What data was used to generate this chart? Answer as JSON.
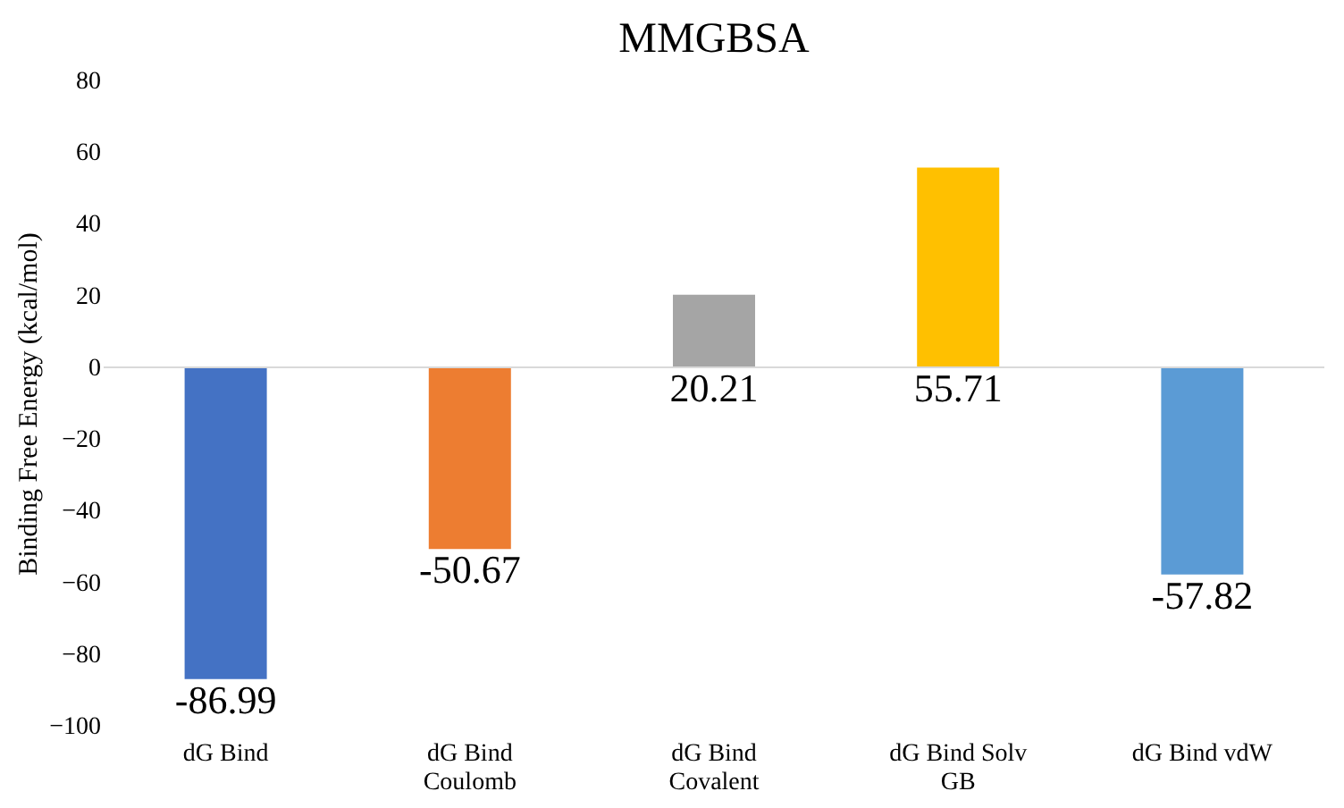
{
  "chart_data": {
    "type": "bar",
    "title": "MMGBSA",
    "ylabel": "Binding Free Energy (kcal/mol)",
    "categories": [
      "dG Bind",
      "dG Bind Coulomb",
      "dG Bind Covalent",
      "dG Bind Solv GB",
      "dG Bind vdW"
    ],
    "values": [
      -86.99,
      -50.67,
      20.21,
      55.71,
      -57.82
    ],
    "colors": [
      "#4472c4",
      "#ed7d31",
      "#a5a5a5",
      "#ffc000",
      "#5b9bd5"
    ],
    "ylim": [
      -100,
      80
    ],
    "yticks": [
      -100,
      -80,
      -60,
      -40,
      -20,
      0,
      20,
      40,
      60,
      80
    ],
    "ref_lines": [
      {
        "axis": "y",
        "value": 0,
        "color": "#d9d9d9"
      }
    ],
    "grid": false,
    "legend": false,
    "data_labels": true
  }
}
